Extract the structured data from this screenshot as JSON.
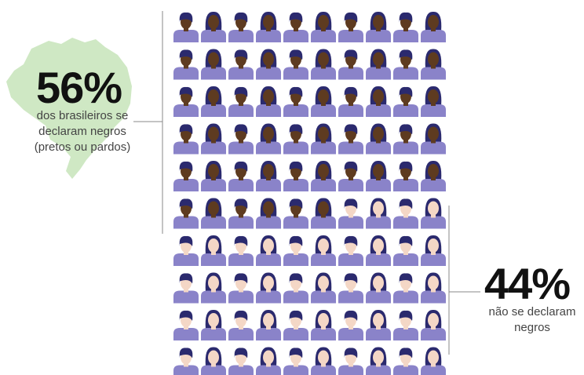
{
  "chart_data": {
    "type": "pictogram",
    "categories": [
      "dos brasileiros se declaram negros (pretos ou pardos)",
      "não se declaram negros"
    ],
    "values": [
      56,
      44
    ],
    "value_labels": [
      "56%",
      "44%"
    ],
    "skin_colors": [
      "#5e3b20",
      "#f4d7c6"
    ],
    "hair_color": "#2b2a6e",
    "body_color": "#8a83c9",
    "map_color": "#cfe8c4",
    "columns": 10
  }
}
